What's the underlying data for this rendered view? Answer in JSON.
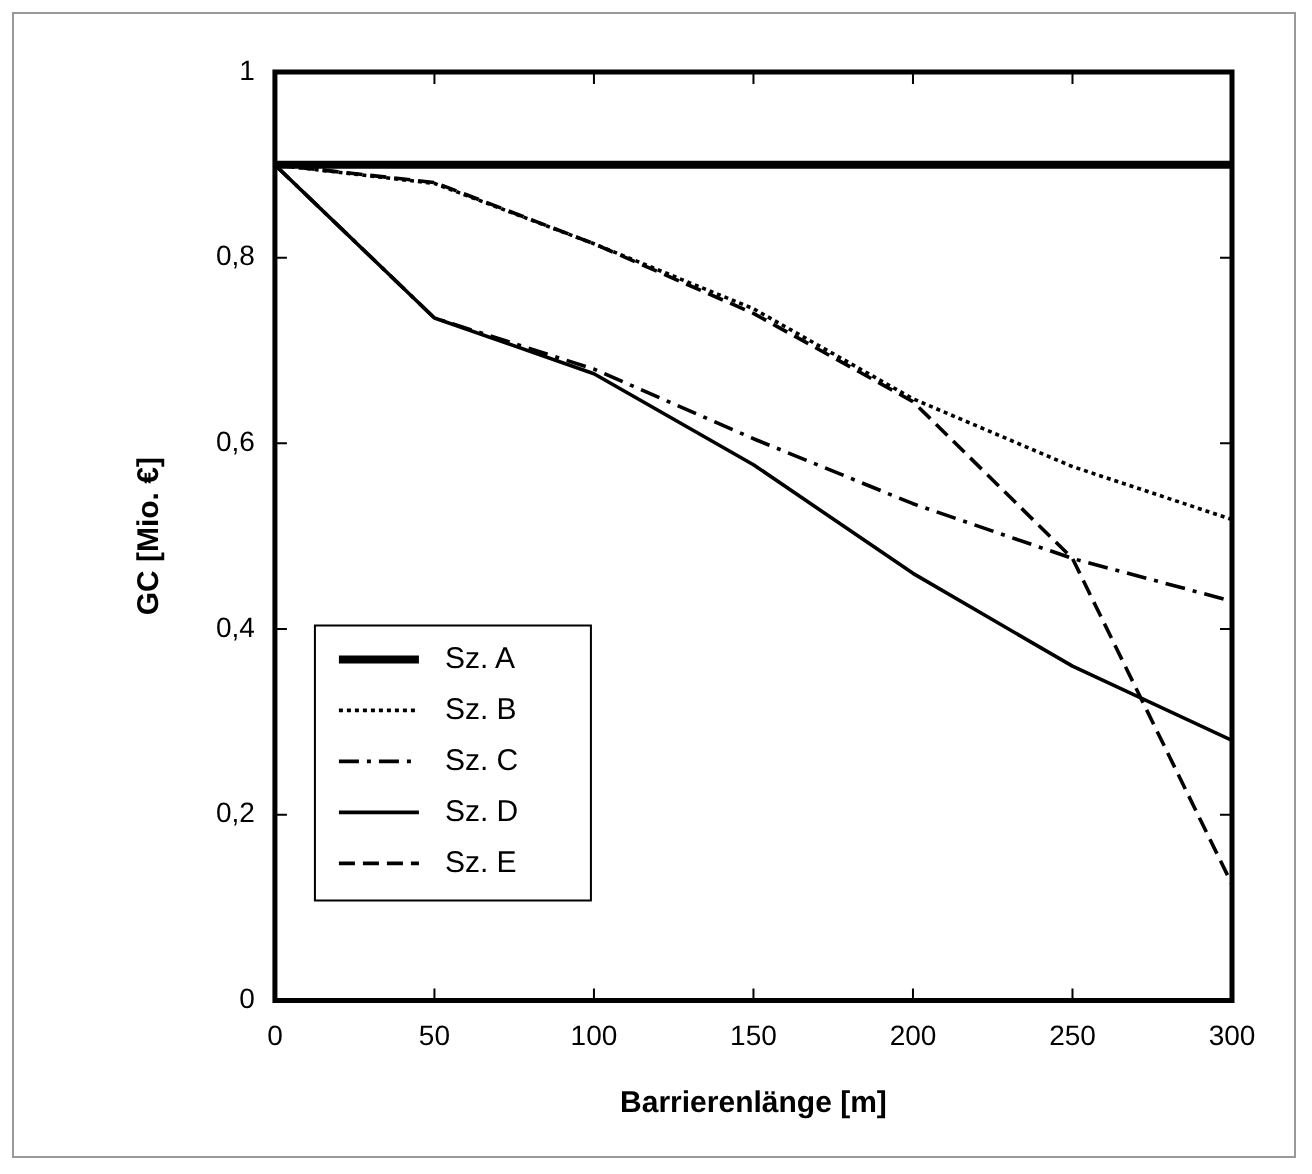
{
  "chart_data": {
    "type": "line",
    "xlabel": "Barrierenlänge [m]",
    "ylabel": "GC [Mio. €]",
    "x": [
      0,
      50,
      100,
      150,
      200,
      250,
      300
    ],
    "series": [
      {
        "name": "Sz. A",
        "color": "#000000",
        "line_style": "solid",
        "values": [
          0.9,
          0.9,
          0.9,
          0.9,
          0.9,
          0.9,
          0.9
        ]
      },
      {
        "name": "Sz. B",
        "color": "#000000",
        "line_style": "dotted",
        "values": [
          0.9,
          0.88,
          0.815,
          0.745,
          0.648,
          0.575,
          0.518
        ]
      },
      {
        "name": "Sz. C",
        "color": "#000000",
        "line_style": "dashdot",
        "values": [
          0.9,
          0.735,
          0.68,
          0.605,
          0.535,
          0.476,
          0.43
        ]
      },
      {
        "name": "Sz. D",
        "color": "#000000",
        "line_style": "solid",
        "values": [
          0.9,
          0.735,
          0.675,
          0.577,
          0.46,
          0.36,
          0.28
        ]
      },
      {
        "name": "Sz. E",
        "color": "#000000",
        "line_style": "dashed",
        "values": [
          0.9,
          0.881,
          0.815,
          0.74,
          0.645,
          0.476,
          0.125
        ]
      }
    ],
    "xlim": [
      0,
      300
    ],
    "xticks": [
      0,
      50,
      100,
      150,
      200,
      250,
      300
    ],
    "ylim": [
      0,
      1
    ],
    "yticks": [
      0,
      {
        "value": 0.2,
        "label": "0,2"
      },
      {
        "value": 0.4,
        "label": "0,4"
      },
      {
        "value": 0.6,
        "label": "0,6"
      },
      {
        "value": 0.8,
        "label": "0,8"
      },
      1
    ],
    "grid": false,
    "legend": "bottom left",
    "marker": "none"
  }
}
